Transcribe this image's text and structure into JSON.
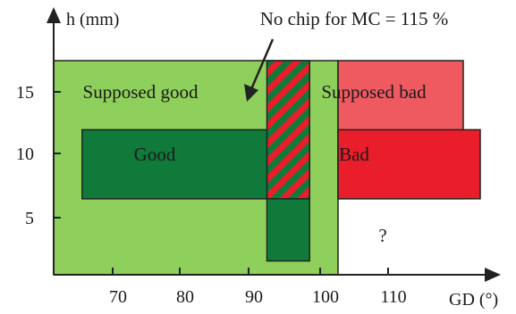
{
  "chart_data": {
    "type": "region-diagram",
    "x_axis": {
      "label": "GD (°)",
      "range": [
        60,
        120
      ],
      "ticks": [
        70,
        80,
        90,
        100,
        110
      ]
    },
    "y_axis": {
      "label": "h (mm)",
      "range": [
        2.5,
        18
      ],
      "ticks": [
        5,
        10,
        15
      ]
    },
    "colors": {
      "supposed_good": "#8fcf5c",
      "good": "#0f7a3a",
      "supposed_bad": "#ef5a60",
      "bad": "#ea1d2a",
      "hatch_red": "#ea1d2a",
      "hatch_green": "#0f7a3a",
      "outline": "#222222"
    },
    "regions": [
      {
        "id": "supposed-good",
        "label": "Supposed good",
        "x": [
          60,
          100
        ],
        "y": [
          2.5,
          18
        ],
        "fill": "supposed_good"
      },
      {
        "id": "supposed-bad",
        "label": "Supposed bad",
        "x": [
          100,
          126
        ],
        "y": [
          8,
          18
        ],
        "fill": "supposed_bad"
      },
      {
        "id": "good-vertical",
        "label": "",
        "x": [
          90,
          96
        ],
        "y": [
          3.5,
          10
        ],
        "fill": "good"
      },
      {
        "id": "good",
        "label": "Good",
        "x": [
          64,
          96
        ],
        "y": [
          8,
          13
        ],
        "fill": "good"
      },
      {
        "id": "bad",
        "label": "Bad",
        "x": [
          100,
          120
        ],
        "y": [
          8,
          13
        ],
        "fill": "bad"
      },
      {
        "id": "no-chip",
        "label": "",
        "x": [
          90,
          96
        ],
        "y": [
          8,
          18
        ],
        "fill": "hatch"
      }
    ],
    "unknown_marker": {
      "text": "?",
      "x": 110,
      "y": 5
    },
    "annotation": {
      "text": "No chip for MC = 115 %",
      "target": [
        93,
        13.5
      ]
    }
  }
}
